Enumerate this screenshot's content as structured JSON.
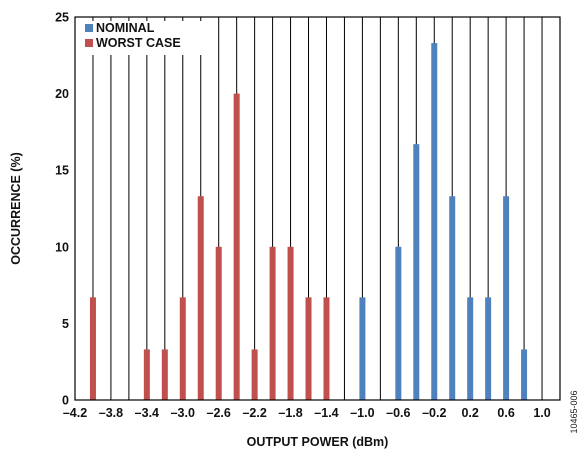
{
  "chart_data": {
    "type": "bar",
    "xlabel": "OUTPUT POWER (dBm)",
    "ylabel": "OCCURRENCE (%)",
    "xlim": [
      -4.2,
      1.2
    ],
    "ylim": [
      0,
      25
    ],
    "x_tick_values": [
      -4.2,
      -3.8,
      -3.4,
      -3.0,
      -2.6,
      -2.2,
      -1.8,
      -1.4,
      -1.0,
      -0.6,
      -0.2,
      0.2,
      0.6,
      1.0
    ],
    "x_tick_labels": [
      "–4.2",
      "–3.8",
      "–3.4",
      "–3.0",
      "–2.6",
      "–2.2",
      "–1.8",
      "–1.4",
      "–1.0",
      "–0.6",
      "–0.2",
      "0.2",
      "0.6",
      "1.0"
    ],
    "y_tick_values": [
      0,
      5,
      10,
      15,
      20,
      25
    ],
    "y_tick_labels": [
      "0",
      "5",
      "10",
      "15",
      "20",
      "25"
    ],
    "grid": "vertical",
    "legend_position": "top-left",
    "series": [
      {
        "name": "NOMINAL",
        "color": "#4f81bd",
        "points": [
          {
            "x": -1.0,
            "y": 6.7
          },
          {
            "x": -0.6,
            "y": 10.0
          },
          {
            "x": -0.4,
            "y": 16.7
          },
          {
            "x": -0.2,
            "y": 23.3
          },
          {
            "x": 0.0,
            "y": 13.3
          },
          {
            "x": 0.2,
            "y": 6.7
          },
          {
            "x": 0.4,
            "y": 6.7
          },
          {
            "x": 0.6,
            "y": 13.3
          },
          {
            "x": 0.8,
            "y": 3.3
          }
        ]
      },
      {
        "name": "WORST CASE",
        "color": "#c0504d",
        "points": [
          {
            "x": -4.0,
            "y": 6.7
          },
          {
            "x": -3.4,
            "y": 3.3
          },
          {
            "x": -3.2,
            "y": 3.3
          },
          {
            "x": -3.0,
            "y": 6.7
          },
          {
            "x": -2.8,
            "y": 13.3
          },
          {
            "x": -2.6,
            "y": 10.0
          },
          {
            "x": -2.4,
            "y": 20.0
          },
          {
            "x": -2.2,
            "y": 3.3
          },
          {
            "x": -2.0,
            "y": 10.0
          },
          {
            "x": -1.8,
            "y": 10.0
          },
          {
            "x": -1.6,
            "y": 6.7
          },
          {
            "x": -1.4,
            "y": 6.7
          }
        ]
      }
    ],
    "figure_id": "10465-006"
  }
}
